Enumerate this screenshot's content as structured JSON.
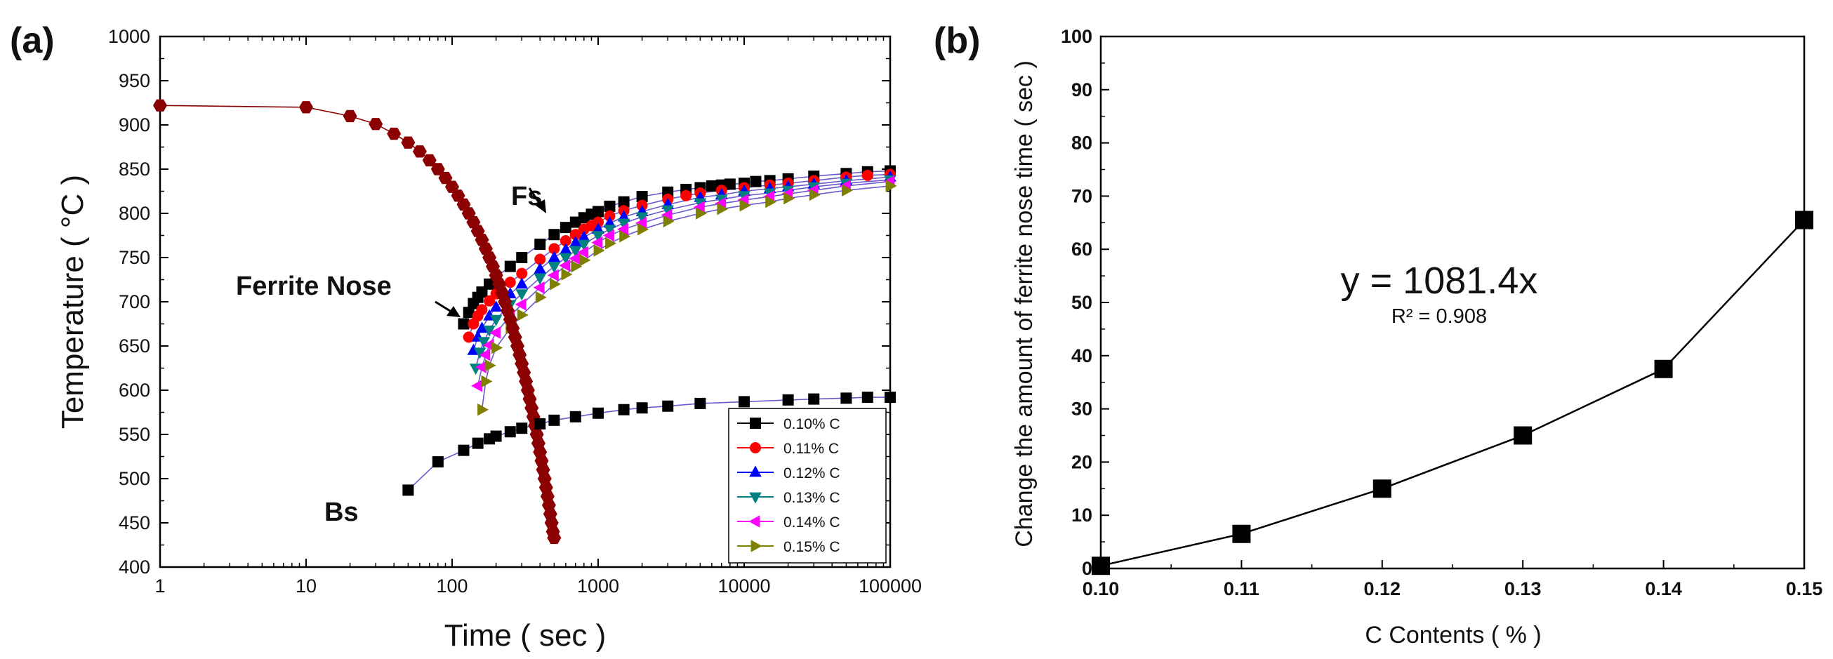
{
  "chart_data": [
    {
      "panel_label": "(a)",
      "type": "scatter",
      "xlabel": "Time ( sec )",
      "ylabel": "Temperature ( °C )",
      "xscale": "log",
      "xlim": [
        1,
        100000
      ],
      "ylim": [
        400,
        1000
      ],
      "xticks": [
        "1",
        "10",
        "100",
        "1000",
        "10000",
        "100000"
      ],
      "yticks": [
        "400",
        "450",
        "500",
        "550",
        "600",
        "650",
        "700",
        "750",
        "800",
        "850",
        "900",
        "950",
        "1000"
      ],
      "legend_placement": "bottom-right",
      "annotations": [
        "Fs",
        "Ferrite Nose",
        "Bs"
      ],
      "series": [
        {
          "name": "0.10% C",
          "color": "#000000",
          "marker": "square",
          "x": [
            120,
            130,
            140,
            150,
            160,
            180,
            200,
            250,
            300,
            400,
            500,
            600,
            700,
            800,
            900,
            1000,
            1200,
            1500,
            2000,
            3000,
            4000,
            5000,
            6000,
            7000,
            8000,
            10000,
            12000,
            15000,
            20000,
            30000,
            50000,
            70000,
            100000
          ],
          "y": [
            675,
            688,
            698,
            705,
            711,
            720,
            728,
            740,
            750,
            765,
            776,
            784,
            790,
            795,
            799,
            802,
            808,
            813,
            819,
            824,
            827,
            829,
            831,
            832,
            833,
            834,
            836,
            837,
            839,
            842,
            845,
            847,
            848
          ]
        },
        {
          "name": "0.11% C",
          "color": "#ff0000",
          "marker": "circle",
          "x": [
            130,
            140,
            150,
            160,
            180,
            200,
            250,
            300,
            400,
            500,
            600,
            700,
            800,
            900,
            1000,
            1200,
            1500,
            2000,
            3000,
            4000,
            5000,
            7000,
            10000,
            15000,
            20000,
            30000,
            50000,
            70000,
            100000
          ],
          "y": [
            660,
            675,
            684,
            691,
            701,
            709,
            722,
            732,
            748,
            760,
            769,
            776,
            782,
            786,
            790,
            797,
            803,
            809,
            816,
            820,
            823,
            826,
            829,
            832,
            834,
            837,
            841,
            843,
            844
          ]
        },
        {
          "name": "0.12% C",
          "color": "#0000ff",
          "marker": "triangle-up",
          "x": [
            140,
            150,
            160,
            180,
            200,
            250,
            300,
            400,
            500,
            600,
            700,
            800,
            1000,
            1200,
            1500,
            2000,
            3000,
            5000,
            7000,
            10000,
            15000,
            20000,
            30000,
            50000,
            100000
          ],
          "y": [
            645,
            660,
            670,
            684,
            694,
            709,
            720,
            737,
            750,
            759,
            767,
            773,
            782,
            789,
            796,
            802,
            810,
            818,
            821,
            825,
            828,
            830,
            833,
            837,
            841
          ]
        },
        {
          "name": "0.13% C",
          "color": "#008080",
          "marker": "triangle-down",
          "x": [
            145,
            155,
            165,
            180,
            200,
            250,
            300,
            400,
            500,
            600,
            700,
            800,
            1000,
            1200,
            1500,
            2000,
            3000,
            5000,
            7000,
            10000,
            15000,
            20000,
            30000,
            50000,
            100000
          ],
          "y": [
            625,
            643,
            655,
            668,
            680,
            697,
            709,
            727,
            740,
            750,
            758,
            765,
            775,
            782,
            789,
            796,
            804,
            812,
            816,
            820,
            823,
            826,
            830,
            834,
            838
          ]
        },
        {
          "name": "0.14% C",
          "color": "#ff00ff",
          "marker": "triangle-left",
          "x": [
            150,
            160,
            170,
            180,
            200,
            250,
            300,
            400,
            500,
            600,
            700,
            800,
            1000,
            1200,
            1500,
            2000,
            3000,
            5000,
            7000,
            10000,
            15000,
            20000,
            30000,
            50000,
            100000
          ],
          "y": [
            605,
            626,
            640,
            651,
            665,
            684,
            697,
            716,
            730,
            741,
            749,
            756,
            767,
            775,
            782,
            789,
            798,
            807,
            811,
            815,
            819,
            822,
            826,
            831,
            836
          ]
        },
        {
          "name": "0.15% C",
          "color": "#808000",
          "marker": "triangle-right",
          "x": [
            160,
            170,
            180,
            200,
            250,
            300,
            400,
            500,
            600,
            700,
            800,
            1000,
            1200,
            1500,
            2000,
            3000,
            5000,
            7000,
            10000,
            15000,
            20000,
            30000,
            50000,
            100000
          ],
          "y": [
            578,
            610,
            628,
            648,
            670,
            685,
            705,
            720,
            731,
            740,
            747,
            758,
            766,
            774,
            782,
            791,
            800,
            805,
            809,
            813,
            817,
            821,
            826,
            831
          ]
        },
        {
          "name": "",
          "color": "#8b0000",
          "marker": "hexagon",
          "x": [
            1,
            10,
            20,
            30,
            40,
            50,
            60,
            70,
            80,
            90,
            100,
            110,
            120,
            130,
            140,
            150,
            160,
            170,
            180,
            190,
            200,
            210,
            220,
            230,
            240,
            250,
            260,
            270,
            280,
            290,
            300,
            310,
            320,
            330,
            340,
            350,
            360,
            370,
            380,
            390,
            400,
            410,
            420,
            430,
            440,
            450,
            460,
            470,
            480,
            490,
            500
          ],
          "y": [
            922,
            920,
            910,
            901,
            890,
            880,
            870,
            860,
            850,
            840,
            830,
            820,
            810,
            800,
            790,
            780,
            770,
            760,
            750,
            740,
            730,
            720,
            710,
            700,
            690,
            680,
            670,
            660,
            650,
            640,
            630,
            620,
            610,
            600,
            590,
            580,
            570,
            560,
            550,
            540,
            530,
            520,
            510,
            500,
            490,
            480,
            470,
            460,
            450,
            440,
            433
          ]
        },
        {
          "name": "",
          "color": "#000000",
          "marker": "square",
          "x": [
            50,
            80,
            120,
            150,
            180,
            200,
            250,
            300,
            400,
            500,
            700,
            1000,
            1500,
            2000,
            3000,
            5000,
            10000,
            20000,
            30000,
            50000,
            70000,
            100000
          ],
          "y": [
            487,
            519,
            532,
            540,
            545,
            548,
            553,
            557,
            562,
            566,
            570,
            574,
            578,
            580,
            582,
            585,
            587,
            589,
            590,
            591,
            592,
            592
          ]
        }
      ]
    },
    {
      "panel_label": "(b)",
      "type": "line",
      "xlabel": "C Contents ( % )",
      "ylabel": "Change the amount of ferrite nose time ( sec )",
      "xlim": [
        0.1,
        0.15
      ],
      "ylim": [
        0,
        100
      ],
      "xticks": [
        "0.10",
        "0.11",
        "0.12",
        "0.13",
        "0.14",
        "0.15"
      ],
      "yticks": [
        "0",
        "10",
        "20",
        "30",
        "40",
        "50",
        "60",
        "70",
        "80",
        "90",
        "100"
      ],
      "equation": "y = 1081.4x",
      "r_squared": "R² = 0.908",
      "series": [
        {
          "name": "",
          "color": "#000000",
          "marker": "square",
          "x": [
            0.1,
            0.11,
            0.12,
            0.13,
            0.14,
            0.15
          ],
          "y": [
            0.5,
            6.5,
            15,
            25,
            37.5,
            65.5
          ]
        }
      ]
    }
  ]
}
